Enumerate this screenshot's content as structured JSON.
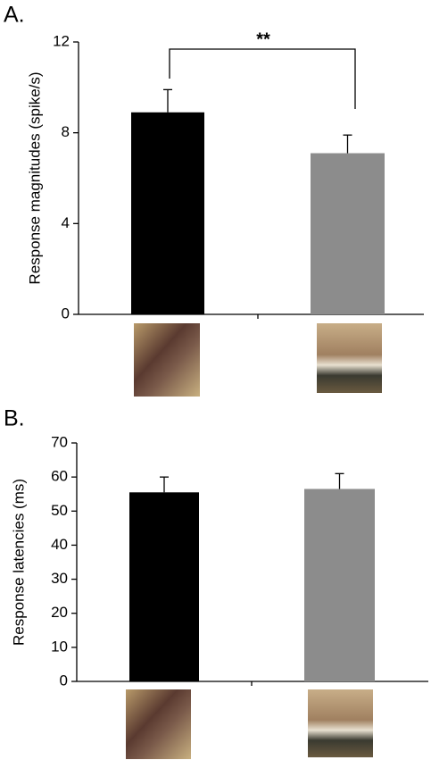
{
  "chart_data": [
    {
      "type": "bar",
      "title": "A.",
      "y_label": "Response magnitudes (spike/s)",
      "categories": [
        null,
        null
      ],
      "values": [
        8.9,
        7.1
      ],
      "errors": [
        1.0,
        0.8
      ],
      "colors": [
        "#000000",
        "#8c8c8c"
      ],
      "ylim": [
        0,
        12
      ],
      "yticks": [
        0,
        4,
        8,
        12
      ],
      "annotation": "**"
    },
    {
      "type": "bar",
      "title": "B.",
      "y_label": "Response latencies (ms)",
      "categories": [
        null,
        null
      ],
      "values": [
        55.5,
        56.5
      ],
      "errors": [
        4.5,
        4.5
      ],
      "colors": [
        "#000000",
        "#8c8c8c"
      ],
      "ylim": [
        0,
        70
      ],
      "yticks": [
        0,
        10,
        20,
        30,
        40,
        50,
        60,
        70
      ]
    }
  ]
}
